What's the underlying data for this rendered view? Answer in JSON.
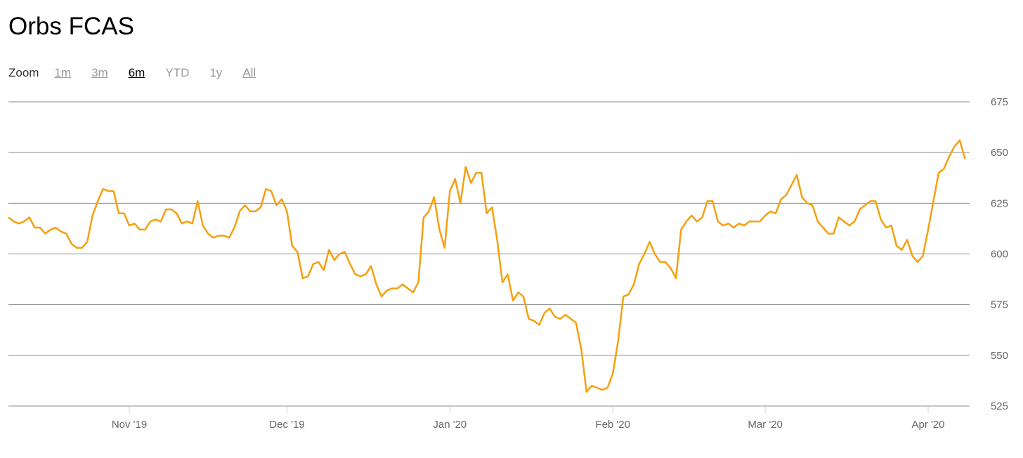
{
  "title": "Orbs FCAS",
  "zoom": {
    "label": "Zoom",
    "buttons": [
      {
        "label": "1m",
        "state": "link"
      },
      {
        "label": "3m",
        "state": "link"
      },
      {
        "label": "6m",
        "state": "selected"
      },
      {
        "label": "YTD",
        "state": "plain"
      },
      {
        "label": "1y",
        "state": "plain"
      },
      {
        "label": "All",
        "state": "link"
      }
    ]
  },
  "chart_data": {
    "type": "line",
    "title": "Orbs FCAS",
    "xlabel": "",
    "ylabel": "",
    "ylim": [
      525,
      675
    ],
    "yticks": [
      525,
      550,
      575,
      600,
      625,
      650,
      675
    ],
    "xticks": [
      {
        "date": "2019-11-01",
        "label": "Nov '19"
      },
      {
        "date": "2019-12-01",
        "label": "Dec '19"
      },
      {
        "date": "2020-01-01",
        "label": "Jan '20"
      },
      {
        "date": "2020-02-01",
        "label": "Feb '20"
      },
      {
        "date": "2020-03-01",
        "label": "Mar '20"
      },
      {
        "date": "2020-04-01",
        "label": "Apr '20"
      }
    ],
    "xlim": [
      "2019-10-09",
      "2020-04-08"
    ],
    "grid": true,
    "line_color": "#f5a00f",
    "grid_color": "#8c8c8c",
    "x": [
      "2019-10-09",
      "2019-10-10",
      "2019-10-11",
      "2019-10-12",
      "2019-10-13",
      "2019-10-14",
      "2019-10-15",
      "2019-10-16",
      "2019-10-17",
      "2019-10-18",
      "2019-10-19",
      "2019-10-20",
      "2019-10-21",
      "2019-10-22",
      "2019-10-23",
      "2019-10-24",
      "2019-10-25",
      "2019-10-26",
      "2019-10-27",
      "2019-10-28",
      "2019-10-29",
      "2019-10-30",
      "2019-10-31",
      "2019-11-01",
      "2019-11-02",
      "2019-11-03",
      "2019-11-04",
      "2019-11-05",
      "2019-11-06",
      "2019-11-07",
      "2019-11-08",
      "2019-11-09",
      "2019-11-10",
      "2019-11-11",
      "2019-11-12",
      "2019-11-13",
      "2019-11-14",
      "2019-11-15",
      "2019-11-16",
      "2019-11-17",
      "2019-11-18",
      "2019-11-19",
      "2019-11-20",
      "2019-11-21",
      "2019-11-22",
      "2019-11-23",
      "2019-11-24",
      "2019-11-25",
      "2019-11-26",
      "2019-11-27",
      "2019-11-28",
      "2019-11-29",
      "2019-11-30",
      "2019-12-01",
      "2019-12-02",
      "2019-12-03",
      "2019-12-04",
      "2019-12-05",
      "2019-12-06",
      "2019-12-07",
      "2019-12-08",
      "2019-12-09",
      "2019-12-10",
      "2019-12-11",
      "2019-12-12",
      "2019-12-13",
      "2019-12-14",
      "2019-12-15",
      "2019-12-16",
      "2019-12-17",
      "2019-12-18",
      "2019-12-19",
      "2019-12-20",
      "2019-12-21",
      "2019-12-22",
      "2019-12-23",
      "2019-12-24",
      "2019-12-25",
      "2019-12-26",
      "2019-12-27",
      "2019-12-28",
      "2019-12-29",
      "2019-12-30",
      "2019-12-31",
      "2020-01-01",
      "2020-01-02",
      "2020-01-03",
      "2020-01-04",
      "2020-01-05",
      "2020-01-06",
      "2020-01-07",
      "2020-01-08",
      "2020-01-09",
      "2020-01-10",
      "2020-01-11",
      "2020-01-12",
      "2020-01-13",
      "2020-01-14",
      "2020-01-15",
      "2020-01-16",
      "2020-01-17",
      "2020-01-18",
      "2020-01-19",
      "2020-01-20",
      "2020-01-21",
      "2020-01-22",
      "2020-01-23",
      "2020-01-24",
      "2020-01-25",
      "2020-01-26",
      "2020-01-27",
      "2020-01-28",
      "2020-01-29",
      "2020-01-30",
      "2020-01-31",
      "2020-02-01",
      "2020-02-02",
      "2020-02-03",
      "2020-02-04",
      "2020-02-05",
      "2020-02-06",
      "2020-02-07",
      "2020-02-08",
      "2020-02-09",
      "2020-02-10",
      "2020-02-11",
      "2020-02-12",
      "2020-02-13",
      "2020-02-14",
      "2020-02-15",
      "2020-02-16",
      "2020-02-17",
      "2020-02-18",
      "2020-02-19",
      "2020-02-20",
      "2020-02-21",
      "2020-02-22",
      "2020-02-23",
      "2020-02-24",
      "2020-02-25",
      "2020-02-26",
      "2020-02-27",
      "2020-02-28",
      "2020-02-29",
      "2020-03-01",
      "2020-03-02",
      "2020-03-03",
      "2020-03-04",
      "2020-03-05",
      "2020-03-06",
      "2020-03-07",
      "2020-03-08",
      "2020-03-09",
      "2020-03-10",
      "2020-03-11",
      "2020-03-12",
      "2020-03-13",
      "2020-03-14",
      "2020-03-15",
      "2020-03-16",
      "2020-03-17",
      "2020-03-18",
      "2020-03-19",
      "2020-03-20",
      "2020-03-21",
      "2020-03-22",
      "2020-03-23",
      "2020-03-24",
      "2020-03-25",
      "2020-03-26",
      "2020-03-27",
      "2020-03-28",
      "2020-03-29",
      "2020-03-30",
      "2020-03-31",
      "2020-04-01",
      "2020-04-02",
      "2020-04-03",
      "2020-04-04",
      "2020-04-05",
      "2020-04-06",
      "2020-04-07",
      "2020-04-08"
    ],
    "values": [
      618,
      616,
      615,
      616,
      618,
      613,
      613,
      610,
      612,
      613,
      611,
      610,
      605,
      603,
      603,
      606,
      619,
      626,
      632,
      631,
      631,
      620,
      620,
      614,
      615,
      612,
      612,
      616,
      617,
      616,
      622,
      622,
      620,
      615,
      616,
      615,
      626,
      614,
      610,
      608,
      609,
      609,
      608,
      613,
      621,
      624,
      621,
      621,
      623,
      632,
      631,
      624,
      627,
      621,
      604,
      601,
      588,
      589,
      595,
      596,
      592,
      602,
      597,
      600,
      601,
      595,
      590,
      589,
      590,
      594,
      585,
      579,
      582,
      583,
      583,
      585,
      583,
      581,
      586,
      618,
      621,
      628,
      612,
      603,
      631,
      637,
      625,
      643,
      635,
      640,
      640,
      620,
      623,
      607,
      586,
      590,
      577,
      581,
      579,
      568,
      567,
      565,
      571,
      573,
      569,
      568,
      570,
      568,
      566,
      553,
      532,
      535,
      534,
      533,
      534,
      541,
      557,
      579,
      580,
      585,
      595,
      600,
      606,
      600,
      596,
      596,
      593,
      588,
      612,
      616,
      619,
      616,
      618,
      626,
      626,
      616,
      614,
      615,
      613,
      615,
      614,
      616,
      616,
      616,
      619,
      621,
      620,
      627,
      629,
      634,
      639,
      628,
      625,
      624,
      616,
      613,
      610,
      610,
      618,
      616,
      614,
      616,
      622,
      624,
      626,
      626,
      617,
      613,
      614,
      604,
      602,
      607,
      599,
      596,
      599,
      612,
      626,
      640,
      642,
      648,
      653,
      656,
      647
    ]
  }
}
